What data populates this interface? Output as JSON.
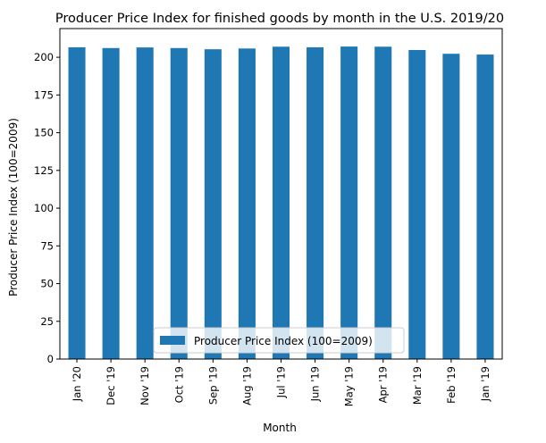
{
  "chart_data": {
    "type": "bar",
    "title": "Producer Price Index for finished goods by month in the U.S. 2019/20",
    "xlabel": "Month",
    "ylabel": "Producer Price Index (100=2009)",
    "categories": [
      "Jan '20",
      "Dec '19",
      "Nov '19",
      "Oct '19",
      "Sep '19",
      "Aug '19",
      "Jul '19",
      "Jun '19",
      "May '19",
      "Apr '19",
      "Mar '19",
      "Feb '19",
      "Jan '19"
    ],
    "series": [
      {
        "name": "Producer Price Index (100=2009)",
        "values": [
          206.6,
          206.1,
          206.5,
          206.1,
          205.3,
          205.8,
          207.0,
          206.6,
          207.1,
          207.0,
          204.8,
          202.3,
          201.8
        ]
      }
    ],
    "ylim": [
      0,
      219
    ],
    "yticks": [
      0,
      25,
      50,
      75,
      100,
      125,
      150,
      175,
      200
    ],
    "grid": false,
    "legend_position": "bottom-center",
    "colors": {
      "bar": "#1f77b4"
    }
  }
}
